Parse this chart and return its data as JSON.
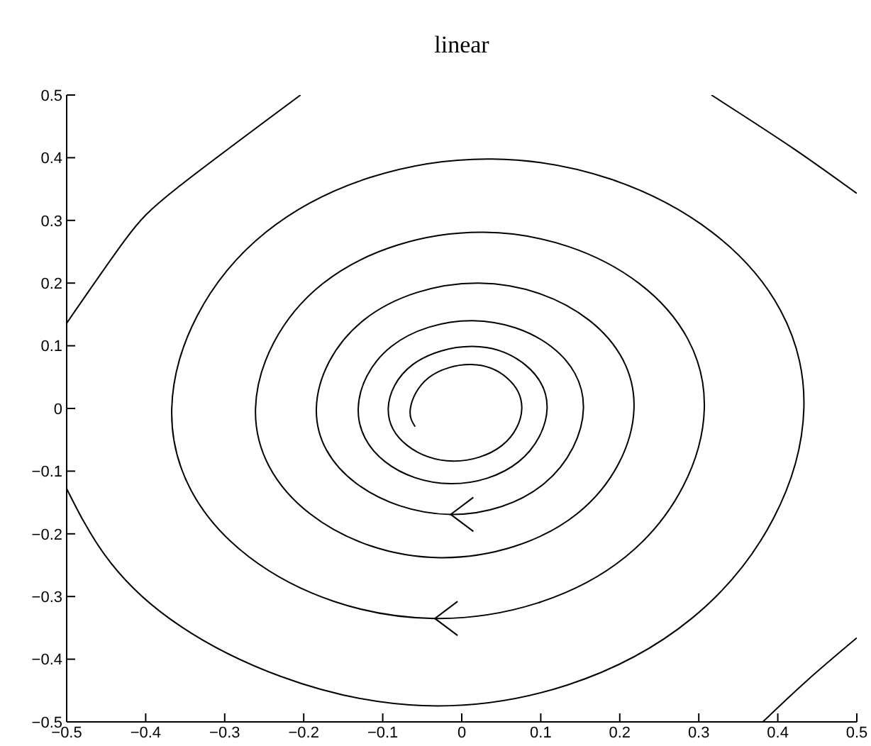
{
  "chart_data": {
    "type": "line",
    "title": "linear",
    "color": "#000000",
    "x": [
      -0.059,
      -0.065,
      -0.042,
      0.012,
      0.057,
      0.076,
      0.051,
      -0.011,
      -0.069,
      -0.093,
      -0.062,
      0.014,
      0.08,
      0.108,
      0.072,
      -0.014,
      -0.097,
      -0.131,
      -0.089,
      0.014,
      0.113,
      0.154,
      0.105,
      -0.014,
      -0.134,
      -0.184,
      -0.124,
      0.022,
      0.161,
      0.218,
      0.146,
      -0.027,
      -0.192,
      -0.261,
      -0.176,
      0.028,
      0.225,
      0.307,
      0.207,
      -0.034,
      -0.269,
      -0.367,
      -0.248,
      0.038,
      0.317,
      0.433,
      0.291,
      -0.05,
      -0.37,
      -0.5,
      null,
      -0.5,
      -0.426,
      -0.361,
      -0.204,
      null,
      0.316,
      0.417,
      0.5,
      null,
      0.5,
      0.437,
      0.381
    ],
    "values": [
      -0.029,
      0,
      0.049,
      0.07,
      0.049,
      0,
      -0.059,
      -0.084,
      -0.059,
      0,
      0.07,
      0.099,
      0.07,
      0,
      -0.085,
      -0.12,
      -0.085,
      0,
      0.099,
      0.14,
      0.099,
      0,
      -0.119,
      -0.169,
      -0.119,
      0,
      0.141,
      0.2,
      0.141,
      0,
      -0.168,
      -0.238,
      -0.168,
      0,
      0.199,
      0.281,
      0.199,
      0,
      -0.237,
      -0.335,
      -0.237,
      0,
      0.281,
      0.398,
      0.281,
      0,
      -0.335,
      -0.474,
      -0.335,
      -0.128,
      null,
      0.136,
      0.269,
      0.351,
      0.5,
      null,
      0.5,
      0.417,
      0.343,
      null,
      -0.366,
      -0.434,
      -0.5
    ],
    "xlim": [
      -0.5,
      0.5
    ],
    "ylim": [
      -0.5,
      0.5
    ],
    "xticks": [
      {
        "value": -0.5,
        "label": "−0.5"
      },
      {
        "value": -0.4,
        "label": "−0.4"
      },
      {
        "value": -0.3,
        "label": "−0.3"
      },
      {
        "value": -0.2,
        "label": "−0.2"
      },
      {
        "value": -0.1,
        "label": "−0.1"
      },
      0,
      0.1,
      0.2,
      0.3,
      0.4,
      0.5
    ],
    "yticks": [
      {
        "value": -0.5,
        "label": "−0.5"
      },
      {
        "value": -0.4,
        "label": "−0.4"
      },
      {
        "value": -0.3,
        "label": "−0.3"
      },
      {
        "value": -0.2,
        "label": "−0.2"
      },
      {
        "value": -0.1,
        "label": "−0.1"
      },
      0,
      0.1,
      0.2,
      0.3,
      0.4,
      0.5
    ],
    "marker": "none",
    "line_style": "solid",
    "grid": false,
    "legend": false
  }
}
